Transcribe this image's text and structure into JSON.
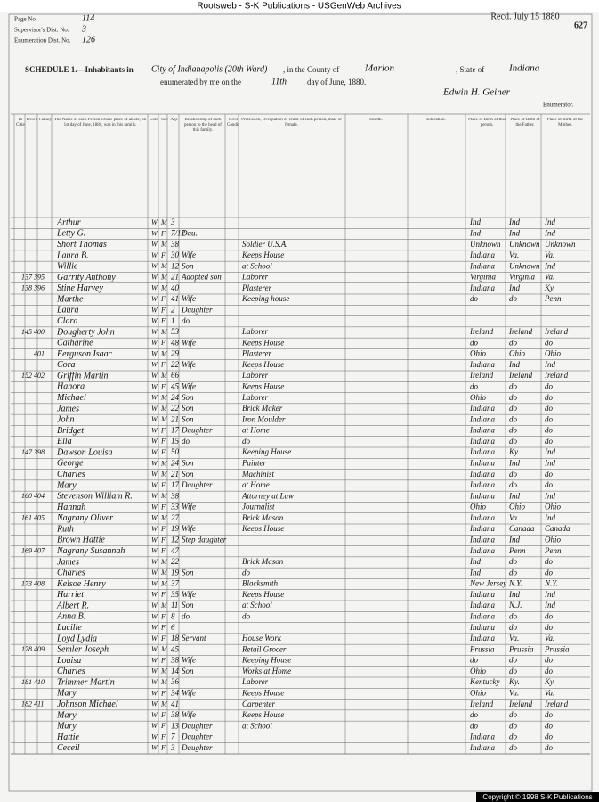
{
  "banner": "Rootsweb - S-K Publications - USGenWeb Archives",
  "stamp": "Recd. July 15 1880",
  "sheet_number": "627",
  "form": {
    "page_label": "Page No.",
    "page_no": "114",
    "supervisor_label": "Supervisor's Dist. No.",
    "supervisor_no": "3",
    "enumeration_label": "Enumeration Dist. No.",
    "enumeration_no": "126",
    "schedule": "SCHEDULE 1.—Inhabitants in",
    "place": "City of Indianapolis (20th Ward)",
    "county_label": ", in the County of",
    "county": "Marion",
    "state_label": ", State of",
    "state": "Indiana",
    "enumerated": "enumerated by me on the",
    "day": "11th",
    "month_text": "day of June, 1880.",
    "enumerator": "Edwin H. Geiner",
    "enumerator_label": "Enumerator."
  },
  "columns": [
    "In Cities.",
    "Dwelling",
    "Family",
    "The Name of each Person whose place of abode, on 1st day of June, 1880, was in this family.",
    "Color",
    "Sex",
    "Age",
    "Relationship of each person to the head of this family.",
    "Civil Condition.",
    "Profession, Occupation or Trade of each person, male or female.",
    "Health.",
    "Education.",
    "Place of Birth of this person.",
    "Place of Birth of the Father.",
    "Place of Birth of the Mother."
  ],
  "rows": [
    [
      null,
      null,
      "Arthur",
      "W",
      "M",
      "3",
      null,
      null,
      "Ind",
      "Ind",
      "Ind"
    ],
    [
      null,
      null,
      "Letty G.",
      "W",
      "F",
      "7/12",
      "Dau.",
      null,
      "Ind",
      "Ind",
      "Ind"
    ],
    [
      null,
      null,
      "Short Thomas",
      "W",
      "M",
      "38",
      null,
      "Soldier U.S.A.",
      "Unknown",
      "Unknown",
      "Unknown"
    ],
    [
      null,
      null,
      "Laura B.",
      "W",
      "F",
      "30",
      "Wife",
      "Keeps House",
      "Indiana",
      "Va.",
      "Va."
    ],
    [
      null,
      null,
      "Willie",
      "W",
      "M",
      "12",
      "Son",
      "at School",
      "Indiana",
      "Unknown",
      "Ind"
    ],
    [
      "137",
      "395",
      "Garrity Anthony",
      "W",
      "M",
      "21",
      "Adopted son",
      "Laborer",
      "Virginia",
      "Virginia",
      "Va."
    ],
    [
      "138",
      "396",
      "Stine Harvey",
      "W",
      "M",
      "40",
      null,
      "Plasterer",
      "Indiana",
      "Ind",
      "Ky."
    ],
    [
      null,
      null,
      "Marthe",
      "W",
      "F",
      "41",
      "Wife",
      "Keeping house",
      "do",
      "do",
      "Penn"
    ],
    [
      null,
      null,
      "Laura",
      "W",
      "F",
      "2",
      "Daughter",
      null,
      null,
      null,
      null
    ],
    [
      null,
      null,
      "Clara",
      "W",
      "F",
      "1",
      "do",
      null,
      null,
      null,
      null
    ],
    [
      "145",
      "400",
      "Dougherty John",
      "W",
      "M",
      "53",
      null,
      "Laborer",
      "Ireland",
      "Ireland",
      "Ireland"
    ],
    [
      null,
      null,
      "Catharine",
      "W",
      "F",
      "48",
      "Wife",
      "Keeps House",
      "do",
      "do",
      "do"
    ],
    [
      null,
      "401",
      "Ferguson Isaac",
      "W",
      "M",
      "29",
      null,
      "Plasterer",
      "Ohio",
      "Ohio",
      "Ohio"
    ],
    [
      null,
      null,
      "Cora",
      "W",
      "F",
      "22",
      "Wife",
      "Keeps House",
      "Indiana",
      "Ind",
      "Ind"
    ],
    [
      "152",
      "402",
      "Griffin Martin",
      "W",
      "M",
      "66",
      null,
      "Laborer",
      "Ireland",
      "Ireland",
      "Ireland"
    ],
    [
      null,
      null,
      "Hanora",
      "W",
      "F",
      "45",
      "Wife",
      "Keeps House",
      "do",
      "do",
      "do"
    ],
    [
      null,
      null,
      "Michael",
      "W",
      "M",
      "24",
      "Son",
      "Laborer",
      "Ohio",
      "do",
      "do"
    ],
    [
      null,
      null,
      "James",
      "W",
      "M",
      "22",
      "Son",
      "Brick Maker",
      "Indiana",
      "do",
      "do"
    ],
    [
      null,
      null,
      "John",
      "W",
      "M",
      "21",
      "Son",
      "Iron Moulder",
      "Indiana",
      "do",
      "do"
    ],
    [
      null,
      null,
      "Bridget",
      "W",
      "F",
      "17",
      "Daughter",
      "at Home",
      "Indiana",
      "do",
      "do"
    ],
    [
      null,
      null,
      "Ella",
      "W",
      "F",
      "15",
      "do",
      "do",
      "Indiana",
      "do",
      "do"
    ],
    [
      "147",
      "398",
      "Dawson Louisa",
      "W",
      "F",
      "50",
      null,
      "Keeping House",
      "Indiana",
      "Ky.",
      "Ind"
    ],
    [
      null,
      null,
      "George",
      "W",
      "M",
      "24",
      "Son",
      "Painter",
      "Indiana",
      "Ind",
      "Ind"
    ],
    [
      null,
      null,
      "Charles",
      "W",
      "M",
      "21",
      "Son",
      "Machinist",
      "Indiana",
      "do",
      "do"
    ],
    [
      null,
      null,
      "Mary",
      "W",
      "F",
      "17",
      "Daughter",
      "at Home",
      "Indiana",
      "do",
      "do"
    ],
    [
      "160",
      "404",
      "Stevenson William R.",
      "W",
      "M",
      "38",
      null,
      "Attorney at Law",
      "Indiana",
      "Ind",
      "Ind"
    ],
    [
      null,
      null,
      "Hannah",
      "W",
      "F",
      "33",
      "Wife",
      "Journalist",
      "Ohio",
      "Ohio",
      "Ohio"
    ],
    [
      "161",
      "405",
      "Nagrany Oliver",
      "W",
      "M",
      "27",
      null,
      "Brick Mason",
      "Indiana",
      "Va.",
      "Ind"
    ],
    [
      null,
      null,
      "Ruth",
      "W",
      "F",
      "19",
      "Wife",
      "Keeps House",
      "Indiana",
      "Canada",
      "Canada"
    ],
    [
      null,
      null,
      "Brown Hattie",
      "W",
      "F",
      "12",
      "Step daughter",
      null,
      "Indiana",
      "Ind",
      "Ohio"
    ],
    [
      "169",
      "407",
      "Nagrany Susannah",
      "W",
      "F",
      "47",
      null,
      null,
      "Indiana",
      "Penn",
      "Penn"
    ],
    [
      null,
      null,
      "James",
      "W",
      "M",
      "22",
      null,
      "Brick Mason",
      "Ind",
      "do",
      "do"
    ],
    [
      null,
      null,
      "Charles",
      "W",
      "M",
      "19",
      "Son",
      "do",
      "Ind",
      "do",
      "do"
    ],
    [
      "173",
      "408",
      "Kelsoe Henry",
      "W",
      "M",
      "37",
      null,
      "Blacksmith",
      "New Jersey",
      "N.Y.",
      "N.Y."
    ],
    [
      null,
      null,
      "Harriet",
      "W",
      "F",
      "35",
      "Wife",
      "Keeps House",
      "Indiana",
      "Ind",
      "Ind"
    ],
    [
      null,
      null,
      "Albert R.",
      "W",
      "M",
      "11",
      "Son",
      "at School",
      "Indiana",
      "N.J.",
      "Ind"
    ],
    [
      null,
      null,
      "Anna B.",
      "W",
      "F",
      "8",
      "do",
      "do",
      "Indiana",
      "do",
      "do"
    ],
    [
      null,
      null,
      "Lucille",
      "W",
      "F",
      "6",
      null,
      null,
      "Indiana",
      "do",
      "do"
    ],
    [
      null,
      null,
      "Loyd Lydia",
      "W",
      "F",
      "18",
      "Servant",
      "House Work",
      "Indiana",
      "Va.",
      "Va."
    ],
    [
      "178",
      "409",
      "Semler Joseph",
      "W",
      "M",
      "45",
      null,
      "Retail Grocer",
      "Prussia",
      "Prussia",
      "Prussia"
    ],
    [
      null,
      null,
      "Louisa",
      "W",
      "F",
      "38",
      "Wife",
      "Keeping House",
      "do",
      "do",
      "do"
    ],
    [
      null,
      null,
      "Charles",
      "W",
      "M",
      "14",
      "Son",
      "Works at Home",
      "Ohio",
      "do",
      "do"
    ],
    [
      "181",
      "410",
      "Trimmer Martin",
      "W",
      "M",
      "36",
      null,
      "Laborer",
      "Kentucky",
      "Ky.",
      "Ky."
    ],
    [
      null,
      null,
      "Mary",
      "W",
      "F",
      "34",
      "Wife",
      "Keeps House",
      "Ohio",
      "Va.",
      "Va."
    ],
    [
      "182",
      "411",
      "Johnson Michael",
      "W",
      "M",
      "41",
      null,
      "Carpenter",
      "Ireland",
      "Ireland",
      "Ireland"
    ],
    [
      null,
      null,
      "Mary",
      "W",
      "F",
      "38",
      "Wife",
      "Keeps House",
      "do",
      "do",
      "do"
    ],
    [
      null,
      null,
      "Mary",
      "W",
      "F",
      "13",
      "Daughter",
      "at School",
      "do",
      "do",
      "do"
    ],
    [
      null,
      null,
      "Hattie",
      "W",
      "F",
      "7",
      "Daughter",
      null,
      "Indiana",
      "do",
      "do"
    ],
    [
      null,
      null,
      "Ceceil",
      "W",
      "F",
      "3",
      "Daughter",
      null,
      "Indiana",
      "do",
      "do"
    ]
  ],
  "copyright": "Copyright © 1998 S-K Publications"
}
